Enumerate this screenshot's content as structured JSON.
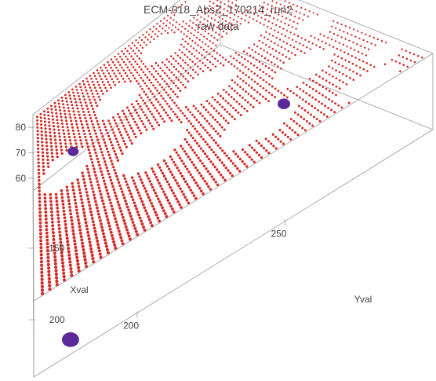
{
  "chart_data": {
    "type": "scatter",
    "subtype": "3d-point-cloud",
    "title": "ECM-018_AbsZ_170214_run2",
    "subtitle": "raw data",
    "xlabel": "Xval",
    "ylabel": "Yval",
    "zlabel": "",
    "xlim": [
      110,
      240
    ],
    "ylim": [
      165,
      300
    ],
    "zlim": [
      55,
      85
    ],
    "x_ticks": [
      "150",
      "200"
    ],
    "y_ticks": [
      "200",
      "250"
    ],
    "z_ticks": [
      "60",
      "70",
      "80"
    ],
    "grid": false,
    "series": [
      {
        "color": "#d42a26",
        "z_level": 84,
        "description_grid": {
          "x_from": 112,
          "x_to": 238,
          "y_from": 167,
          "y_to": 298,
          "step": 2.5
        },
        "holes": [
          {
            "xc": 162,
            "yc": 180,
            "rx": 12,
            "ry": 12
          },
          {
            "xc": 140,
            "yc": 213,
            "rx": 9,
            "ry": 12
          },
          {
            "xc": 128,
            "yc": 245,
            "rx": 8,
            "ry": 11
          },
          {
            "xc": 118,
            "yc": 272,
            "rx": 6,
            "ry": 10
          },
          {
            "xc": 186,
            "yc": 216,
            "rx": 12,
            "ry": 15
          },
          {
            "xc": 170,
            "yc": 247,
            "rx": 9,
            "ry": 13
          },
          {
            "xc": 155,
            "yc": 272,
            "rx": 8,
            "ry": 11
          },
          {
            "xc": 138,
            "yc": 292,
            "rx": 6,
            "ry": 7
          },
          {
            "xc": 214,
            "yc": 250,
            "rx": 11,
            "ry": 14
          },
          {
            "xc": 198,
            "yc": 275,
            "rx": 9,
            "ry": 11
          },
          {
            "xc": 178,
            "yc": 293,
            "rx": 7,
            "ry": 6
          },
          {
            "xc": 232,
            "yc": 282,
            "rx": 7,
            "ry": 10
          },
          {
            "xc": 220,
            "yc": 294,
            "rx": 7,
            "ry": 5
          }
        ]
      },
      {
        "color": "#5a2a9a",
        "points": [
          {
            "x": 230,
            "y": 178,
            "z": 55,
            "size": 11
          },
          {
            "x": 168,
            "y": 285,
            "z": 55,
            "size": 8
          },
          {
            "x": 128,
            "y": 190,
            "z": 69,
            "size": 7
          }
        ]
      }
    ]
  }
}
